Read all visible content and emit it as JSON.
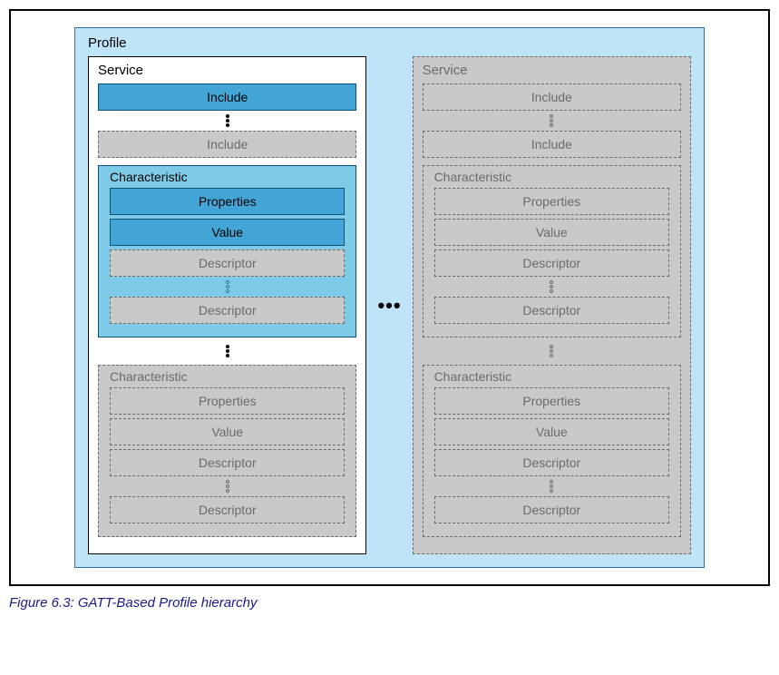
{
  "caption": "Figure 6.3:  GATT-Based Profile hierarchy",
  "colors": {
    "profile_bg": "#bfe3f7",
    "profile_border": "#2b6fa8",
    "active_include_bg": "#42a5d6",
    "active_include_border": "#0b4f7a",
    "active_char_bg": "#7ecbe8",
    "active_char_border": "#0b4f7a",
    "inactive_bg": "#c9c9c9",
    "inactive_border": "#6b6b6b",
    "gray_text": "#6b6b6b",
    "black": "#000000",
    "white": "#ffffff",
    "caption_color": "#1a1a8a"
  },
  "labels": {
    "profile": "Profile",
    "service": "Service",
    "characteristic": "Characteristic",
    "include": "Include",
    "properties": "Properties",
    "value": "Value",
    "descriptor": "Descriptor"
  },
  "left_service": {
    "title_color": "#000000",
    "border_style": "solid",
    "bg": "#ffffff",
    "includes": [
      {
        "bg": "#42a5d6",
        "border": "#0b4f7a",
        "border_style": "solid",
        "text_color": "#000000"
      },
      {
        "bg": "#c9c9c9",
        "border": "#6b6b6b",
        "border_style": "dashed",
        "text_color": "#6b6b6b"
      }
    ],
    "characteristics": [
      {
        "bg": "#7ecbe8",
        "border": "#0b4f7a",
        "border_style": "solid",
        "title_color": "#000000",
        "items": [
          {
            "label_key": "properties",
            "bg": "#42a5d6",
            "border": "#0b4f7a",
            "border_style": "solid",
            "text_color": "#000000"
          },
          {
            "label_key": "value",
            "bg": "#42a5d6",
            "border": "#0b4f7a",
            "border_style": "solid",
            "text_color": "#000000"
          },
          {
            "label_key": "descriptor",
            "bg": "#c9c9c9",
            "border": "#6b6b6b",
            "border_style": "dashed",
            "text_color": "#6b6b6b"
          },
          {
            "label_key": "descriptor",
            "bg": "#c9c9c9",
            "border": "#6b6b6b",
            "border_style": "dashed",
            "text_color": "#6b6b6b"
          }
        ],
        "dots_after_index": 2,
        "dot_style": "ring",
        "dot_color": "#3a7a9c"
      },
      {
        "bg": "#c9c9c9",
        "border": "#6b6b6b",
        "border_style": "dashed",
        "title_color": "#6b6b6b",
        "items": [
          {
            "label_key": "properties",
            "bg": "#c9c9c9",
            "border": "#6b6b6b",
            "border_style": "dashed",
            "text_color": "#6b6b6b"
          },
          {
            "label_key": "value",
            "bg": "#c9c9c9",
            "border": "#6b6b6b",
            "border_style": "dashed",
            "text_color": "#6b6b6b"
          },
          {
            "label_key": "descriptor",
            "bg": "#c9c9c9",
            "border": "#6b6b6b",
            "border_style": "dashed",
            "text_color": "#6b6b6b"
          },
          {
            "label_key": "descriptor",
            "bg": "#c9c9c9",
            "border": "#6b6b6b",
            "border_style": "dashed",
            "text_color": "#6b6b6b"
          }
        ],
        "dots_after_index": 2,
        "dot_style": "ring",
        "dot_color": "#6b6b6b"
      }
    ],
    "dots_between_includes": {
      "style": "solid",
      "color": "#000000"
    },
    "dots_between_chars": {
      "style": "solid",
      "color": "#000000"
    }
  },
  "right_service": {
    "title_color": "#6b6b6b",
    "border_style": "dashed",
    "bg": "#c9c9c9",
    "includes": [
      {
        "bg": "#c9c9c9",
        "border": "#6b6b6b",
        "border_style": "dashed",
        "text_color": "#6b6b6b"
      },
      {
        "bg": "#c9c9c9",
        "border": "#6b6b6b",
        "border_style": "dashed",
        "text_color": "#6b6b6b"
      }
    ],
    "characteristics": [
      {
        "bg": "#c9c9c9",
        "border": "#6b6b6b",
        "border_style": "dashed",
        "title_color": "#6b6b6b",
        "items": [
          {
            "label_key": "properties",
            "bg": "#c9c9c9",
            "border": "#6b6b6b",
            "border_style": "dashed",
            "text_color": "#6b6b6b"
          },
          {
            "label_key": "value",
            "bg": "#c9c9c9",
            "border": "#6b6b6b",
            "border_style": "dashed",
            "text_color": "#6b6b6b"
          },
          {
            "label_key": "descriptor",
            "bg": "#c9c9c9",
            "border": "#6b6b6b",
            "border_style": "dashed",
            "text_color": "#6b6b6b"
          },
          {
            "label_key": "descriptor",
            "bg": "#c9c9c9",
            "border": "#6b6b6b",
            "border_style": "dashed",
            "text_color": "#6b6b6b"
          }
        ],
        "dots_after_index": 2,
        "dot_style": "ring",
        "dot_color": "#6b6b6b"
      },
      {
        "bg": "#c9c9c9",
        "border": "#6b6b6b",
        "border_style": "dashed",
        "title_color": "#6b6b6b",
        "items": [
          {
            "label_key": "properties",
            "bg": "#c9c9c9",
            "border": "#6b6b6b",
            "border_style": "dashed",
            "text_color": "#6b6b6b"
          },
          {
            "label_key": "value",
            "bg": "#c9c9c9",
            "border": "#6b6b6b",
            "border_style": "dashed",
            "text_color": "#6b6b6b"
          },
          {
            "label_key": "descriptor",
            "bg": "#c9c9c9",
            "border": "#6b6b6b",
            "border_style": "dashed",
            "text_color": "#6b6b6b"
          },
          {
            "label_key": "descriptor",
            "bg": "#c9c9c9",
            "border": "#6b6b6b",
            "border_style": "dashed",
            "text_color": "#6b6b6b"
          }
        ],
        "dots_after_index": 2,
        "dot_style": "ring",
        "dot_color": "#6b6b6b"
      }
    ],
    "dots_between_includes": {
      "style": "ring",
      "color": "#6b6b6b"
    },
    "dots_between_chars": {
      "style": "ring",
      "color": "#6b6b6b"
    }
  }
}
